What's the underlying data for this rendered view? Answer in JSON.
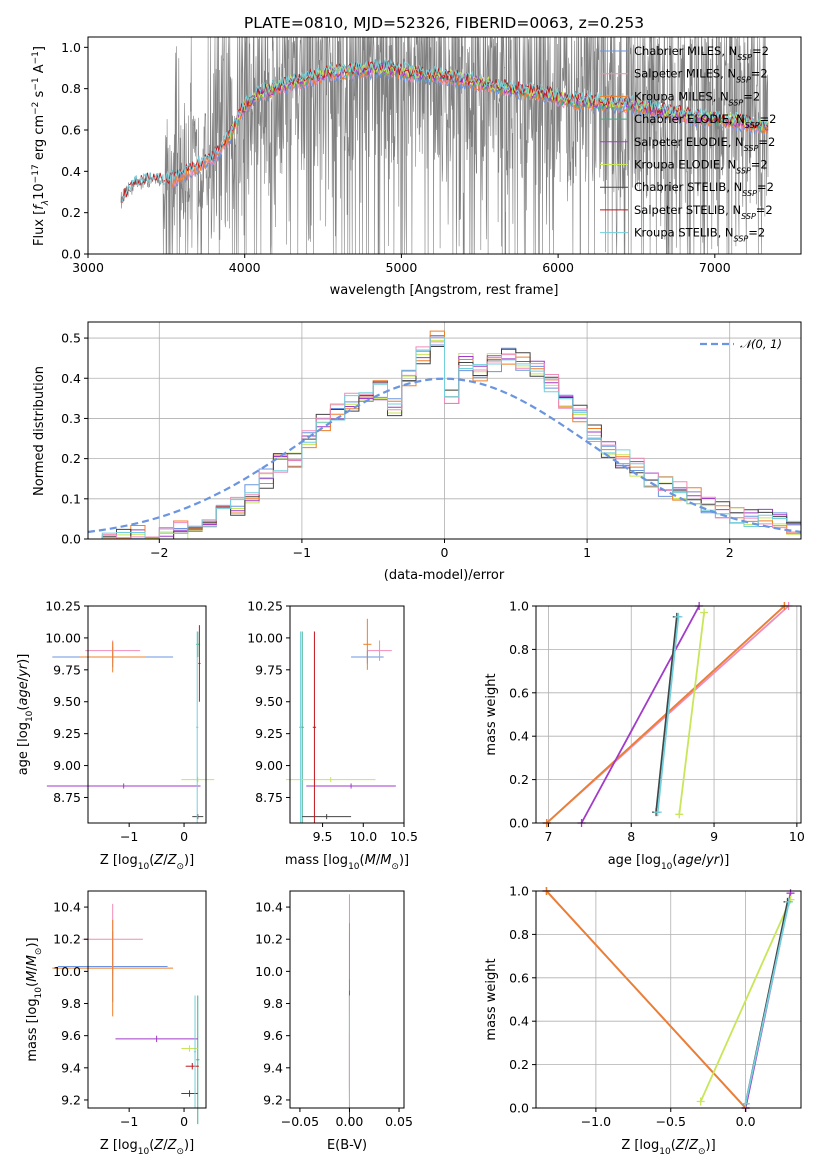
{
  "title": "PLATE=0810, MJD=52326, FIBERID=0063, z=0.253",
  "colors": {
    "Chabrier MILES": "#6b95e0",
    "Salpeter MILES": "#f08cb8",
    "Kroupa MILES": "#ef7f2a",
    "Chabrier ELODIE": "#3fae8a",
    "Salpeter ELODIE": "#a13bc8",
    "Kroupa ELODIE": "#c8e65a",
    "Chabrier STELIB": "#444444",
    "Salpeter STELIB": "#c0181c",
    "Kroupa STELIB": "#72d0dc",
    "data": "#808080",
    "normal": "#6b95e0"
  },
  "chart_data": [
    {
      "id": "spectrum",
      "type": "line",
      "xlabel": "wavelength [Angstrom, rest frame]",
      "ylabel": "Flux [f_λ 10^-17 erg cm^-2 s^-1 A^-1]",
      "xlim": [
        3000,
        7550
      ],
      "ylim": [
        0,
        1.05
      ],
      "xticks": [
        3000,
        4000,
        5000,
        6000,
        7000
      ],
      "yticks": [
        0.0,
        0.2,
        0.4,
        0.6,
        0.8,
        1.0
      ],
      "legend_position": "top-right",
      "legend": [
        "Chabrier MILES, N_SSP=2",
        "Salpeter MILES, N_SSP=2",
        "Kroupa MILES, N_SSP=2",
        "Chabrier ELODIE, N_SSP=2",
        "Salpeter ELODIE, N_SSP=2",
        "Kroupa ELODIE, N_SSP=2",
        "Chabrier STELIB, N_SSP=2",
        "Salpeter STELIB, N_SSP=2",
        "Kroupa STELIB, N_SSP=2"
      ],
      "model_continuum": {
        "x": [
          3200,
          3300,
          3400,
          3500,
          3600,
          3700,
          3800,
          3900,
          4000,
          4100,
          4300,
          4500,
          4700,
          4900,
          5100,
          5300,
          5500,
          5700,
          5900,
          6100,
          6300,
          6500,
          6700,
          6900,
          7100,
          7300
        ],
        "y": [
          0.25,
          0.34,
          0.36,
          0.35,
          0.38,
          0.43,
          0.47,
          0.57,
          0.72,
          0.78,
          0.83,
          0.87,
          0.89,
          0.9,
          0.87,
          0.86,
          0.83,
          0.8,
          0.78,
          0.74,
          0.73,
          0.72,
          0.69,
          0.66,
          0.65,
          0.62
        ]
      }
    },
    {
      "id": "residuals",
      "type": "histogram",
      "xlabel": "(data-model)/error",
      "ylabel": "Normed distribution",
      "xlim": [
        -2.5,
        2.5
      ],
      "ylim": [
        0,
        0.54
      ],
      "xticks": [
        -2,
        -1,
        0,
        1,
        2
      ],
      "yticks": [
        0.0,
        0.1,
        0.2,
        0.3,
        0.4,
        0.5
      ],
      "grid": true,
      "legend_position": "top-right",
      "normal_label": "N(0,1)",
      "bin_edges": [
        -2.5,
        -2.4,
        -2.3,
        -2.2,
        -2.1,
        -2.0,
        -1.9,
        -1.8,
        -1.7,
        -1.6,
        -1.5,
        -1.4,
        -1.3,
        -1.2,
        -1.1,
        -1.0,
        -0.9,
        -0.8,
        -0.7,
        -0.6,
        -0.5,
        -0.4,
        -0.3,
        -0.2,
        -0.1,
        0.0,
        0.1,
        0.2,
        0.3,
        0.4,
        0.5,
        0.6,
        0.7,
        0.8,
        0.9,
        1.0,
        1.1,
        1.2,
        1.3,
        1.4,
        1.5,
        1.6,
        1.7,
        1.8,
        1.9,
        2.0,
        2.1,
        2.2,
        2.3,
        2.4,
        2.5
      ],
      "counts": [
        0.0,
        0.01,
        0.005,
        0.01,
        0.0,
        0.01,
        0.02,
        0.03,
        0.04,
        0.06,
        0.08,
        0.11,
        0.15,
        0.19,
        0.2,
        0.25,
        0.29,
        0.32,
        0.34,
        0.36,
        0.37,
        0.33,
        0.4,
        0.46,
        0.5,
        0.35,
        0.44,
        0.41,
        0.44,
        0.45,
        0.44,
        0.42,
        0.39,
        0.35,
        0.31,
        0.26,
        0.22,
        0.2,
        0.18,
        0.15,
        0.13,
        0.12,
        0.11,
        0.09,
        0.07,
        0.06,
        0.05,
        0.05,
        0.04,
        0.03
      ]
    },
    {
      "id": "age_vs_Z",
      "type": "scatter",
      "xlabel": "Z [log10(Z/Z⊙)]",
      "ylabel": "age [log10(age/yr)]",
      "xlim": [
        -1.75,
        0.4
      ],
      "ylim": [
        8.55,
        10.25
      ],
      "xticks": [
        -1,
        0
      ],
      "yticks": [
        8.75,
        9.0,
        9.25,
        9.5,
        9.75,
        10.0,
        10.25
      ],
      "points": [
        {
          "model": "Chabrier MILES",
          "x": -1.3,
          "y": 9.85,
          "xerr": 1.1,
          "yerr": 0.08
        },
        {
          "model": "Salpeter MILES",
          "x": -1.3,
          "y": 9.9,
          "xerr": 0.5,
          "yerr": 0.08
        },
        {
          "model": "Kroupa MILES",
          "x": -1.3,
          "y": 9.85,
          "xerr": 0.6,
          "yerr": 0.12
        },
        {
          "model": "Chabrier ELODIE",
          "x": 0.25,
          "y": 9.95,
          "xerr": 0.03,
          "yerr": 0.1
        },
        {
          "model": "Salpeter ELODIE",
          "x": -1.1,
          "y": 8.84,
          "xerr": 1.4,
          "yerr": 0.02
        },
        {
          "model": "Kroupa ELODIE",
          "x": 0.25,
          "y": 8.89,
          "xerr": 0.3,
          "yerr": 0.02
        },
        {
          "model": "Chabrier STELIB",
          "x": 0.25,
          "y": 8.6,
          "xerr": 0.1,
          "yerr": 0.02
        },
        {
          "model": "Salpeter STELIB",
          "x": 0.28,
          "y": 9.8,
          "xerr": 0.02,
          "yerr": 0.3
        },
        {
          "model": "Kroupa STELIB",
          "x": 0.24,
          "y": 9.3,
          "xerr": 0.02,
          "yerr": 0.75
        }
      ]
    },
    {
      "id": "age_vs_mass",
      "type": "scatter",
      "xlabel": "mass [log10(M/M⊙)]",
      "ylabel": "",
      "xlim": [
        9.1,
        10.5
      ],
      "ylim": [
        8.55,
        10.25
      ],
      "xticks": [
        9.5,
        10.0,
        10.5
      ],
      "yticks": [
        8.75,
        9.0,
        9.25,
        9.5,
        9.75,
        10.0,
        10.25
      ],
      "points": [
        {
          "model": "Chabrier MILES",
          "x": 10.05,
          "y": 9.85,
          "xerr": 0.2,
          "yerr": 0.05
        },
        {
          "model": "Salpeter MILES",
          "x": 10.2,
          "y": 9.9,
          "xerr": 0.15,
          "yerr": 0.08
        },
        {
          "model": "Kroupa MILES",
          "x": 10.05,
          "y": 9.95,
          "xerr": 0.05,
          "yerr": 0.2
        },
        {
          "model": "Chabrier ELODIE",
          "x": 9.25,
          "y": 9.3,
          "xerr": 0.02,
          "yerr": 0.75
        },
        {
          "model": "Salpeter ELODIE",
          "x": 9.85,
          "y": 8.84,
          "xerr": 0.55,
          "yerr": 0.02
        },
        {
          "model": "Kroupa ELODIE",
          "x": 9.6,
          "y": 8.89,
          "xerr": 0.55,
          "yerr": 0.02
        },
        {
          "model": "Chabrier STELIB",
          "x": 9.55,
          "y": 8.6,
          "xerr": 0.3,
          "yerr": 0.02
        },
        {
          "model": "Salpeter STELIB",
          "x": 9.4,
          "y": 9.3,
          "xerr": 0.02,
          "yerr": 0.75
        },
        {
          "model": "Kroupa STELIB",
          "x": 9.23,
          "y": 9.3,
          "xerr": 0.02,
          "yerr": 0.75
        }
      ]
    },
    {
      "id": "massweight_vs_age",
      "type": "line",
      "xlabel": "age [log10(age/yr)]",
      "ylabel": "mass weight",
      "xlim": [
        6.85,
        10.05
      ],
      "ylim": [
        0,
        1.0
      ],
      "xticks": [
        7,
        8,
        9,
        10
      ],
      "yticks": [
        0.0,
        0.2,
        0.4,
        0.6,
        0.8,
        1.0
      ],
      "grid": true,
      "series": [
        {
          "model": "Chabrier MILES",
          "x": [
            6.98,
            9.85
          ],
          "y": [
            0.0,
            1.0
          ]
        },
        {
          "model": "Salpeter MILES",
          "x": [
            6.98,
            9.9
          ],
          "y": [
            0.0,
            1.0
          ]
        },
        {
          "model": "Kroupa MILES",
          "x": [
            6.98,
            9.85
          ],
          "y": [
            0.0,
            1.0
          ]
        },
        {
          "model": "Salpeter ELODIE",
          "x": [
            7.4,
            8.82
          ],
          "y": [
            0.0,
            1.0
          ]
        },
        {
          "model": "Kroupa ELODIE",
          "x": [
            8.58,
            8.88
          ],
          "y": [
            0.04,
            0.97
          ]
        },
        {
          "model": "Chabrier STELIB",
          "x": [
            8.3,
            8.55
          ],
          "y": [
            0.05,
            0.95
          ]
        },
        {
          "model": "Kroupa STELIB",
          "x": [
            8.32,
            8.57
          ],
          "y": [
            0.05,
            0.95
          ]
        }
      ]
    },
    {
      "id": "mass_vs_Z",
      "type": "scatter",
      "xlabel": "Z [log10(Z/Z⊙)]",
      "ylabel": "mass [log10(M/M⊙)]",
      "xlim": [
        -1.75,
        0.4
      ],
      "ylim": [
        9.15,
        10.5
      ],
      "xticks": [
        -1,
        0
      ],
      "yticks": [
        9.2,
        9.4,
        9.6,
        9.8,
        10.0,
        10.2,
        10.4
      ],
      "points": [
        {
          "model": "Chabrier MILES",
          "x": -1.3,
          "y": 10.03,
          "xerr": 1.0,
          "yerr": 0.22
        },
        {
          "model": "Salpeter MILES",
          "x": -1.3,
          "y": 10.2,
          "xerr": 0.55,
          "yerr": 0.22
        },
        {
          "model": "Kroupa MILES",
          "x": -1.3,
          "y": 10.02,
          "xerr": 1.1,
          "yerr": 0.3
        },
        {
          "model": "Chabrier ELODIE",
          "x": 0.25,
          "y": 9.45,
          "xerr": 0.03,
          "yerr": 0.4
        },
        {
          "model": "Salpeter ELODIE",
          "x": -0.5,
          "y": 9.58,
          "xerr": 0.75,
          "yerr": 0.02
        },
        {
          "model": "Kroupa ELODIE",
          "x": 0.1,
          "y": 9.52,
          "xerr": 0.15,
          "yerr": 0.02
        },
        {
          "model": "Chabrier STELIB",
          "x": 0.1,
          "y": 9.24,
          "xerr": 0.15,
          "yerr": 0.02
        },
        {
          "model": "Salpeter STELIB",
          "x": 0.15,
          "y": 9.41,
          "xerr": 0.12,
          "yerr": 0.02
        },
        {
          "model": "Kroupa STELIB",
          "x": 0.2,
          "y": 9.5,
          "xerr": 0.02,
          "yerr": 0.35
        }
      ]
    },
    {
      "id": "mass_vs_ebv",
      "type": "scatter",
      "xlabel": "E(B-V)",
      "ylabel": "",
      "xlim": [
        -0.06,
        0.055
      ],
      "ylim": [
        9.15,
        10.5
      ],
      "xticks": [
        -0.05,
        0.0,
        0.05
      ],
      "yticks": [
        9.2,
        9.4,
        9.6,
        9.8,
        10.0,
        10.2,
        10.4
      ],
      "points": [
        {
          "model": "Chabrier MILES",
          "x": 0.0,
          "y": 10.03,
          "yerr": 0.2
        },
        {
          "model": "Salpeter MILES",
          "x": 0.0,
          "y": 10.2,
          "yerr": 0.28
        },
        {
          "model": "Kroupa MILES",
          "x": 0.0,
          "y": 10.02,
          "yerr": 0.28
        },
        {
          "model": "Chabrier ELODIE",
          "x": 0.0,
          "y": 9.6,
          "yerr": 0.35
        },
        {
          "model": "Salpeter ELODIE",
          "x": 0.0,
          "y": 9.58,
          "yerr": 0.3
        },
        {
          "model": "Kroupa ELODIE",
          "x": 0.0,
          "y": 9.55,
          "yerr": 0.3
        },
        {
          "model": "Chabrier STELIB",
          "x": 0.0,
          "y": 9.45,
          "yerr": 0.4
        },
        {
          "model": "Salpeter STELIB",
          "x": 0.0,
          "y": 9.41,
          "yerr": 0.2
        },
        {
          "model": "Kroupa STELIB",
          "x": 0.0,
          "y": 9.5,
          "yerr": 0.35
        }
      ]
    },
    {
      "id": "massweight_vs_Z",
      "type": "line",
      "xlabel": "Z [log10(Z/Z⊙)]",
      "ylabel": "mass weight",
      "xlim": [
        -1.4,
        0.37
      ],
      "ylim": [
        0,
        1.0
      ],
      "xticks": [
        -1.0,
        -0.5,
        0.0
      ],
      "yticks": [
        0.0,
        0.2,
        0.4,
        0.6,
        0.8,
        1.0
      ],
      "grid": true,
      "series": [
        {
          "model": "Chabrier MILES",
          "x": [
            -1.33,
            0.0
          ],
          "y": [
            1.0,
            0.0
          ]
        },
        {
          "model": "Salpeter MILES",
          "x": [
            -1.33,
            0.0
          ],
          "y": [
            1.0,
            0.0
          ]
        },
        {
          "model": "Kroupa MILES",
          "x": [
            -1.33,
            0.0
          ],
          "y": [
            1.0,
            0.0
          ]
        },
        {
          "model": "Salpeter ELODIE",
          "x": [
            0.0,
            0.3
          ],
          "y": [
            0.0,
            0.99
          ]
        },
        {
          "model": "Kroupa ELODIE",
          "x": [
            -0.3,
            0.3
          ],
          "y": [
            0.03,
            0.96
          ]
        },
        {
          "model": "Chabrier STELIB",
          "x": [
            0.0,
            0.28
          ],
          "y": [
            0.02,
            0.95
          ]
        },
        {
          "model": "Kroupa STELIB",
          "x": [
            0.0,
            0.29
          ],
          "y": [
            0.02,
            0.95
          ]
        }
      ]
    }
  ]
}
